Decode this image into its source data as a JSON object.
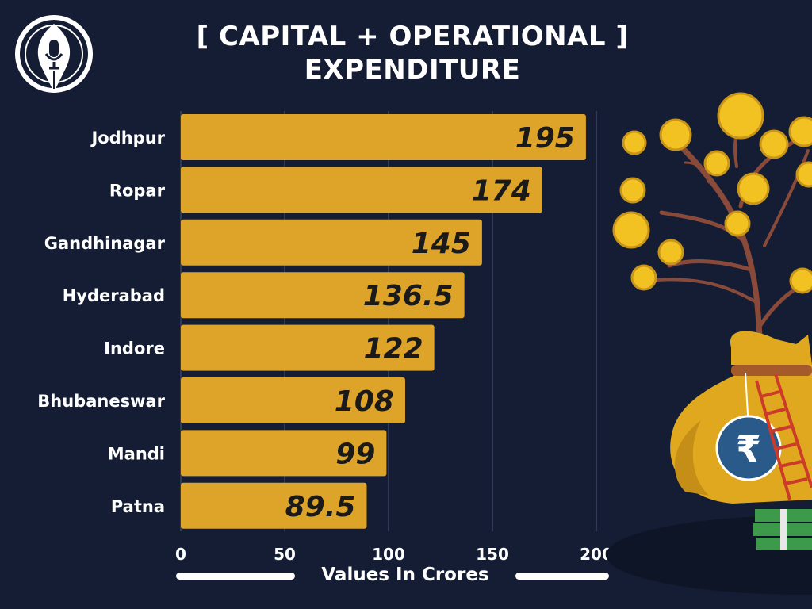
{
  "header": {
    "title_line1": "[ CAPITAL + OPERATIONAL ]",
    "title_line2": "EXPENDITURE"
  },
  "logo": {
    "icon": "pen-nib-microphone-logo"
  },
  "illustration": {
    "icon": "rupee-money-tree-bag"
  },
  "colors": {
    "background": "#141d33",
    "bar": "#dea42a",
    "text": "#ffffff",
    "value_text": "#1a1a1a",
    "grid": "#3b4560"
  },
  "chart_data": {
    "type": "bar",
    "orientation": "horizontal",
    "title": "[ CAPITAL + OPERATIONAL ] EXPENDITURE",
    "xlabel": "Values In Crores",
    "ylabel": "",
    "categories": [
      "Jodhpur",
      "Ropar",
      "Gandhinagar",
      "Hyderabad",
      "Indore",
      "Bhubaneswar",
      "Mandi",
      "Patna"
    ],
    "values": [
      195,
      174,
      145,
      136.5,
      122,
      108,
      99,
      89.5
    ],
    "value_labels": [
      "195",
      "174",
      "145",
      "136.5",
      "122",
      "108",
      "99",
      "89.5"
    ],
    "xlim": [
      0,
      200
    ],
    "xticks": [
      0,
      50,
      100,
      150,
      200
    ],
    "xtick_labels": [
      "0",
      "50",
      "100",
      "150",
      "200"
    ],
    "grid": true,
    "legend": "none"
  }
}
